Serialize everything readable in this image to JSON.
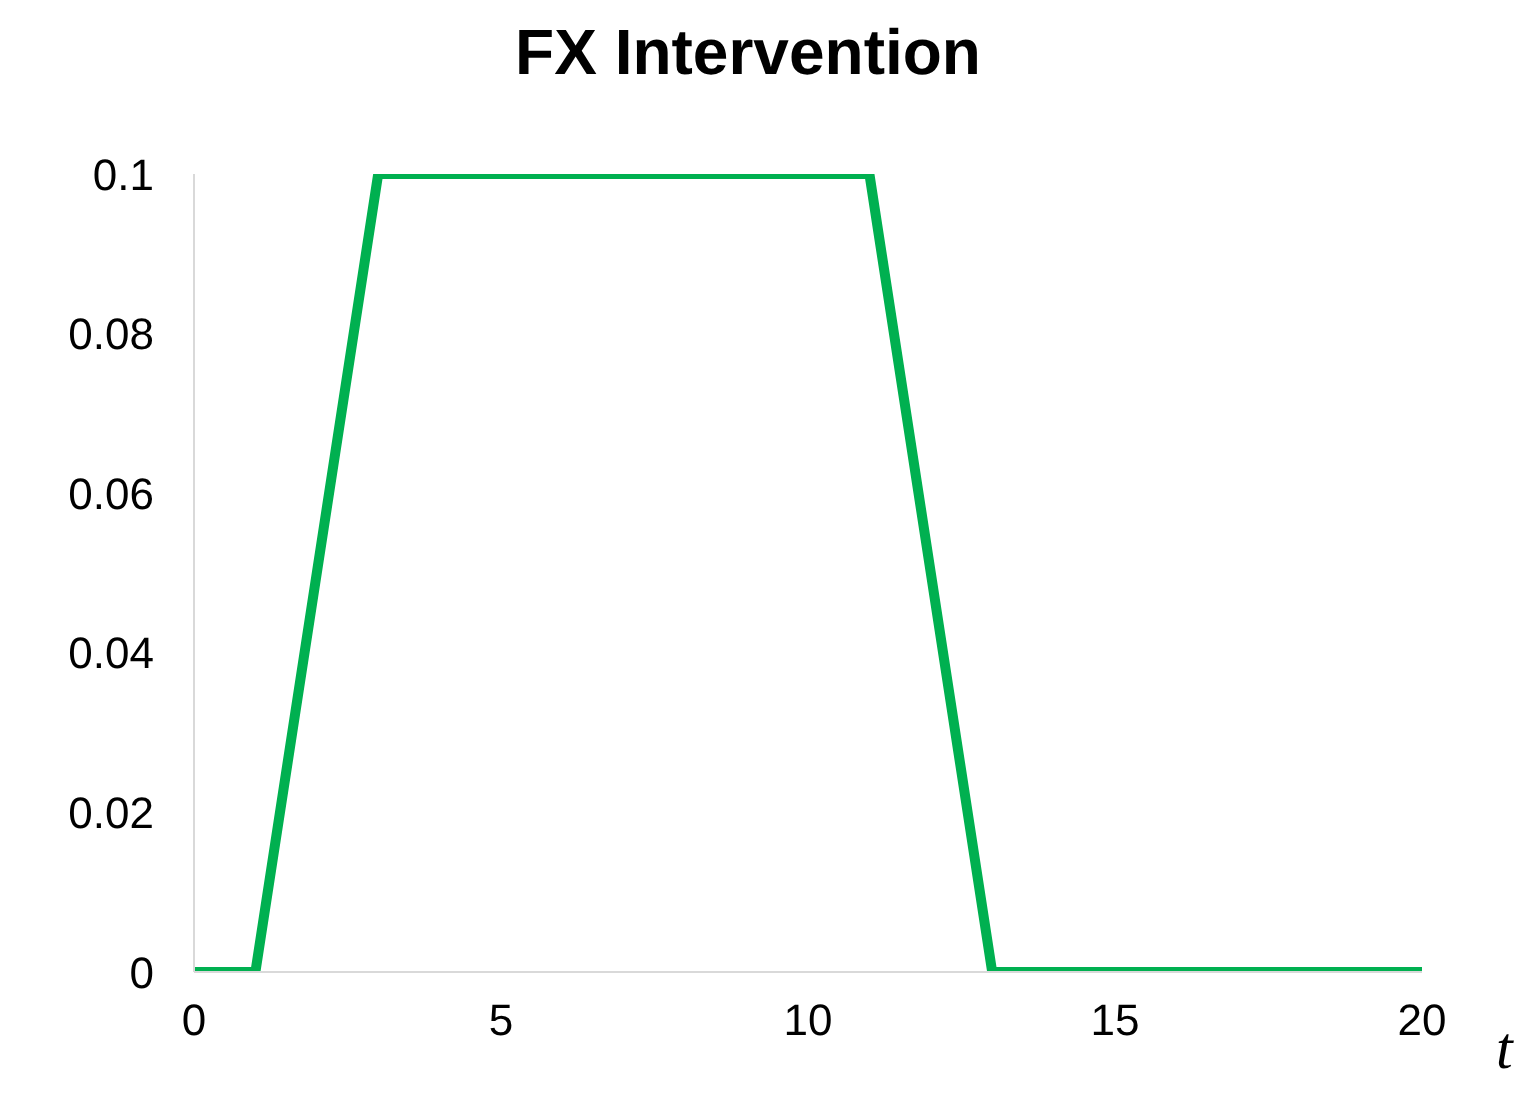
{
  "chart_data": {
    "type": "line",
    "title": "FX Intervention",
    "xlabel": "t",
    "x": [
      0,
      1,
      2,
      3,
      4,
      5,
      6,
      7,
      8,
      9,
      10,
      11,
      12,
      13,
      14,
      15,
      16,
      17,
      18,
      19,
      20
    ],
    "series": [
      {
        "color": "#00b050",
        "values": [
          0,
          0,
          0.05,
          0.1,
          0.1,
          0.1,
          0.1,
          0.1,
          0.1,
          0.1,
          0.1,
          0.1,
          0.05,
          0,
          0,
          0,
          0,
          0,
          0,
          0,
          0
        ]
      }
    ],
    "xlim": [
      0,
      20
    ],
    "xticks": [
      0,
      5,
      10,
      15,
      20
    ],
    "ylim": [
      0,
      0.1
    ],
    "yticks": [
      0,
      0.02,
      0.04,
      0.06,
      0.08,
      0.1
    ],
    "grid": false,
    "marker": "none",
    "line_style": "solid"
  }
}
